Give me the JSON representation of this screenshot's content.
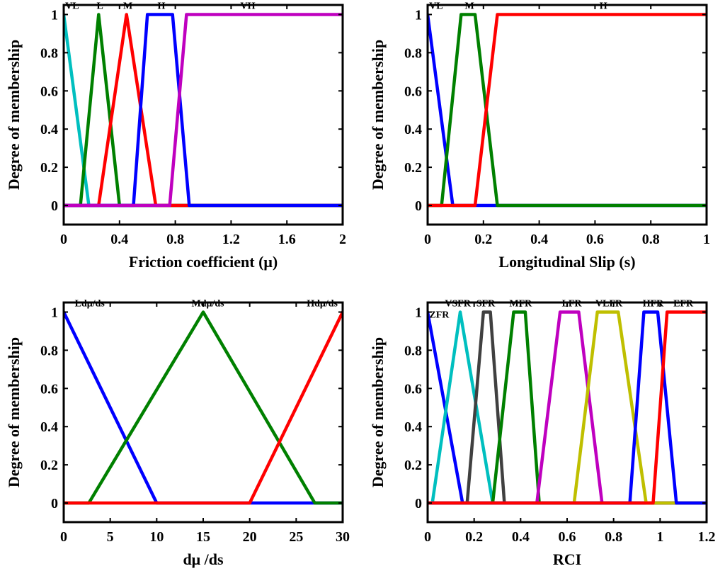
{
  "chart_data": [
    {
      "type": "line",
      "ylabel": "Degree of membership",
      "xlabel": "Friction coefficient (μ)",
      "xlim": [
        0,
        2
      ],
      "ylim": [
        -0.1,
        1.05
      ],
      "xticks": [
        0,
        0.4,
        0.8,
        1.2,
        1.6,
        2
      ],
      "xtick_labels": [
        "0",
        "0.4",
        "0.8",
        "1.2",
        "1.6",
        "2"
      ],
      "yticks": [
        0,
        0.2,
        0.4,
        0.6,
        0.8,
        1
      ],
      "ytick_labels": [
        "0",
        "0.2",
        "0.4",
        "0.6",
        "0.8",
        "1"
      ],
      "series": [
        {
          "name": "VL",
          "color": "#00bfbf",
          "x": [
            0,
            0.18,
            2
          ],
          "y": [
            1,
            0,
            0
          ]
        },
        {
          "name": "L",
          "color": "#008000",
          "x": [
            0,
            0.12,
            0.25,
            0.4,
            2
          ],
          "y": [
            0,
            0,
            1,
            0,
            0
          ]
        },
        {
          "name": "M",
          "color": "#ff0000",
          "x": [
            0,
            0.25,
            0.45,
            0.66,
            2
          ],
          "y": [
            0,
            0,
            1,
            0,
            0
          ]
        },
        {
          "name": "H",
          "color": "#0000ff",
          "x": [
            0,
            0.5,
            0.6,
            0.78,
            0.9,
            2
          ],
          "y": [
            0,
            0,
            1,
            1,
            0,
            0
          ]
        },
        {
          "name": "VH",
          "color": "#bf00bf",
          "x": [
            0,
            0.76,
            0.88,
            2
          ],
          "y": [
            0,
            0,
            1,
            1
          ]
        }
      ],
      "annotations": [
        {
          "text": "VL",
          "x": 0.06,
          "y": 1.03
        },
        {
          "text": "L",
          "x": 0.26,
          "y": 1.03
        },
        {
          "text": "M",
          "x": 0.46,
          "y": 1.03
        },
        {
          "text": "H",
          "x": 0.7,
          "y": 1.03
        },
        {
          "text": "VH",
          "x": 1.32,
          "y": 1.03
        }
      ]
    },
    {
      "type": "line",
      "ylabel": "Degree of membership",
      "xlabel": "Longitudinal Slip (s)",
      "xlim": [
        0,
        1
      ],
      "ylim": [
        -0.1,
        1.05
      ],
      "xticks": [
        0,
        0.2,
        0.4,
        0.6,
        0.8,
        1
      ],
      "xtick_labels": [
        "0",
        "0.2",
        "0.4",
        "0.6",
        "0.8",
        "1"
      ],
      "yticks": [
        0,
        0.2,
        0.4,
        0.6,
        0.8,
        1
      ],
      "ytick_labels": [
        "0",
        "0.2",
        "0.4",
        "0.6",
        "0.8",
        "1"
      ],
      "series": [
        {
          "name": "VL",
          "color": "#0000ff",
          "x": [
            0,
            0.09,
            1
          ],
          "y": [
            1,
            0,
            0
          ]
        },
        {
          "name": "M",
          "color": "#008000",
          "x": [
            0,
            0.05,
            0.12,
            0.17,
            0.25,
            1
          ],
          "y": [
            0,
            0,
            1,
            1,
            0,
            0
          ]
        },
        {
          "name": "H",
          "color": "#ff0000",
          "x": [
            0,
            0.17,
            0.25,
            1
          ],
          "y": [
            0,
            0,
            1,
            1
          ]
        }
      ],
      "annotations": [
        {
          "text": "VL",
          "x": 0.03,
          "y": 1.03
        },
        {
          "text": "M",
          "x": 0.15,
          "y": 1.03
        },
        {
          "text": "H",
          "x": 0.63,
          "y": 1.03
        }
      ]
    },
    {
      "type": "line",
      "ylabel": "Degree of membership",
      "xlabel": "dμ /ds",
      "xlim": [
        0,
        30
      ],
      "ylim": [
        -0.1,
        1.05
      ],
      "xticks": [
        0,
        5,
        10,
        15,
        20,
        25,
        30
      ],
      "xtick_labels": [
        "0",
        "5",
        "10",
        "15",
        "20",
        "25",
        "30"
      ],
      "yticks": [
        0,
        0.2,
        0.4,
        0.6,
        0.8,
        1
      ],
      "ytick_labels": [
        "0",
        "0.2",
        "0.4",
        "0.6",
        "0.8",
        "1"
      ],
      "series": [
        {
          "name": "Ldμ/ds",
          "color": "#0000ff",
          "x": [
            0,
            10,
            30
          ],
          "y": [
            1,
            0,
            0
          ]
        },
        {
          "name": "Mdμ/ds",
          "color": "#008000",
          "x": [
            0,
            2.7,
            15,
            27,
            30
          ],
          "y": [
            0,
            0,
            1,
            0,
            0
          ]
        },
        {
          "name": "Hdμ/ds",
          "color": "#ff0000",
          "x": [
            0,
            20,
            30
          ],
          "y": [
            0,
            0,
            1
          ]
        }
      ],
      "annotations": [
        {
          "text": "Ldμ/ds",
          "x": 2.8,
          "y": 1.03
        },
        {
          "text": "Mdμ/ds",
          "x": 15.5,
          "y": 1.03
        },
        {
          "text": "Hdμ/ds",
          "x": 27.8,
          "y": 1.03
        }
      ]
    },
    {
      "type": "line",
      "ylabel": "Degree of membership",
      "xlabel": "RCI",
      "xlim": [
        0,
        1.2
      ],
      "ylim": [
        -0.1,
        1.05
      ],
      "xticks": [
        0,
        0.2,
        0.4,
        0.6,
        0.8,
        1,
        1.2
      ],
      "xtick_labels": [
        "0",
        "0.2",
        "0.4",
        "0.6",
        "0.8",
        "1",
        "1.2"
      ],
      "yticks": [
        0,
        0.2,
        0.4,
        0.6,
        0.8,
        1
      ],
      "ytick_labels": [
        "0",
        "0.2",
        "0.4",
        "0.6",
        "0.8",
        "1"
      ],
      "series": [
        {
          "name": "ZFR",
          "color": "#0000ff",
          "x": [
            0,
            0.15,
            1.2
          ],
          "y": [
            1,
            0,
            0
          ]
        },
        {
          "name": "VSFR",
          "color": "#00bfbf",
          "x": [
            0,
            0.02,
            0.14,
            0.28,
            1.2
          ],
          "y": [
            0,
            0,
            1,
            0,
            0
          ]
        },
        {
          "name": "SFR",
          "color": "#404040",
          "x": [
            0,
            0.17,
            0.24,
            0.27,
            0.33,
            1.2
          ],
          "y": [
            0,
            0,
            1,
            1,
            0,
            0
          ]
        },
        {
          "name": "MFR",
          "color": "#008000",
          "x": [
            0,
            0.28,
            0.37,
            0.42,
            0.48,
            1.2
          ],
          "y": [
            0,
            0,
            1,
            1,
            0,
            0
          ]
        },
        {
          "name": "LFR",
          "color": "#bf00bf",
          "x": [
            0,
            0.47,
            0.57,
            0.65,
            0.75,
            1.2
          ],
          "y": [
            0,
            0,
            1,
            1,
            0,
            0
          ]
        },
        {
          "name": "VLFR",
          "color": "#bfbf00",
          "x": [
            0,
            0.63,
            0.73,
            0.82,
            0.94,
            1.2
          ],
          "y": [
            0,
            0,
            1,
            1,
            0,
            0
          ]
        },
        {
          "name": "HFR",
          "color": "#0000ff",
          "x": [
            0,
            0.87,
            0.93,
            0.99,
            1.07,
            1.2
          ],
          "y": [
            0,
            0,
            1,
            1,
            0,
            0
          ]
        },
        {
          "name": "EFR",
          "color": "#ff0000",
          "x": [
            0,
            0.97,
            1.03,
            1.2
          ],
          "y": [
            0,
            0,
            1,
            1
          ]
        }
      ],
      "annotations": [
        {
          "text": "ZFR",
          "x": 0.05,
          "y": 0.97
        },
        {
          "text": "VSFR",
          "x": 0.13,
          "y": 1.03
        },
        {
          "text": "SFR",
          "x": 0.25,
          "y": 1.03
        },
        {
          "text": "MFR",
          "x": 0.4,
          "y": 1.03
        },
        {
          "text": "LFR",
          "x": 0.62,
          "y": 1.03
        },
        {
          "text": "VLFR",
          "x": 0.78,
          "y": 1.03
        },
        {
          "text": "HFR",
          "x": 0.97,
          "y": 1.03
        },
        {
          "text": "EFR",
          "x": 1.1,
          "y": 1.03
        }
      ]
    }
  ]
}
